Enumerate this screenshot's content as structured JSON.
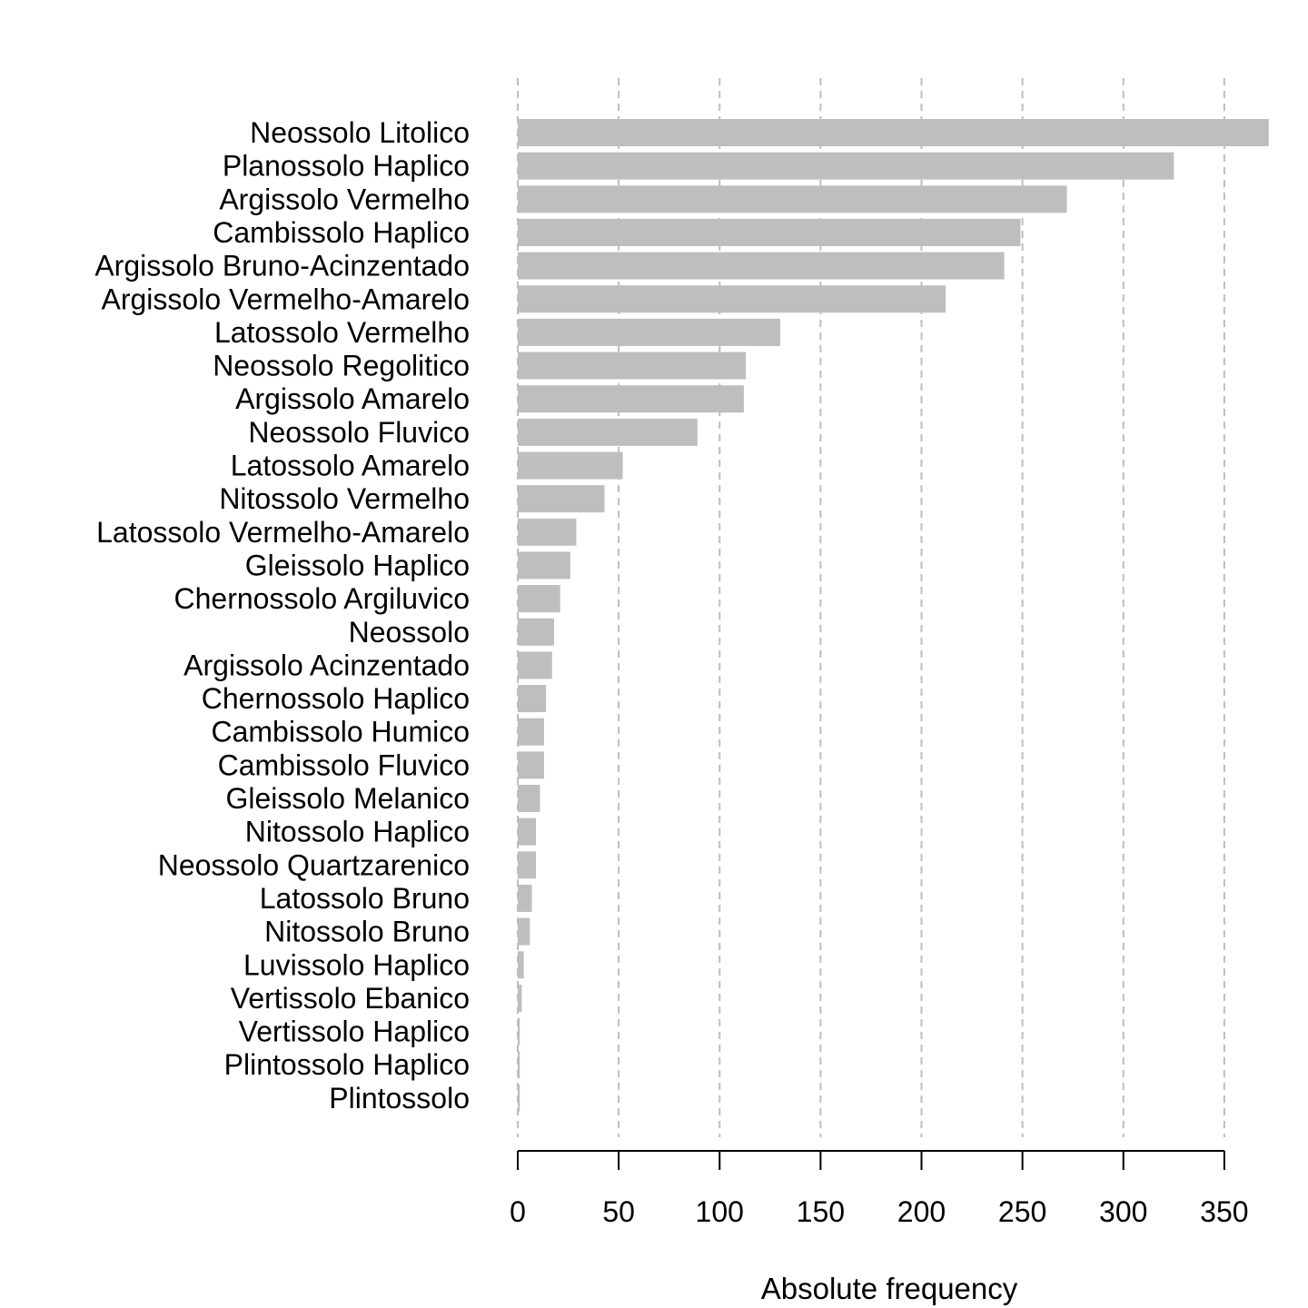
{
  "chart_data": {
    "type": "bar",
    "orientation": "horizontal",
    "title": "",
    "xlabel": "Absolute frequency",
    "ylabel": "",
    "xlim": [
      0,
      373
    ],
    "x_ticks": [
      0,
      50,
      100,
      150,
      200,
      250,
      300,
      350
    ],
    "grid": "vertical dashed",
    "categories": [
      "Neossolo Litolico",
      "Planossolo Haplico",
      "Argissolo Vermelho",
      "Cambissolo Haplico",
      "Argissolo Bruno-Acinzentado",
      "Argissolo Vermelho-Amarelo",
      "Latossolo Vermelho",
      "Neossolo Regolitico",
      "Argissolo Amarelo",
      "Neossolo Fluvico",
      "Latossolo Amarelo",
      "Nitossolo Vermelho",
      "Latossolo Vermelho-Amarelo",
      "Gleissolo Haplico",
      "Chernossolo Argiluvico",
      "Neossolo",
      "Argissolo Acinzentado",
      "Chernossolo Haplico",
      "Cambissolo Humico",
      "Cambissolo Fluvico",
      "Gleissolo Melanico",
      "Nitossolo Haplico",
      "Neossolo Quartzarenico",
      "Latossolo Bruno",
      "Nitossolo Bruno",
      "Luvissolo Haplico",
      "Vertissolo Ebanico",
      "Vertissolo Haplico",
      "Plintossolo Haplico",
      "Plintossolo"
    ],
    "values": [
      372,
      325,
      272,
      249,
      241,
      212,
      130,
      113,
      112,
      89,
      52,
      43,
      29,
      26,
      21,
      18,
      17,
      14,
      13,
      13,
      11,
      9,
      9,
      7,
      6,
      3,
      2,
      1,
      1,
      1
    ],
    "colors": {
      "bar": "#bebebe",
      "grid": "#bebebe",
      "axis": "#000000",
      "text": "#000000"
    }
  }
}
